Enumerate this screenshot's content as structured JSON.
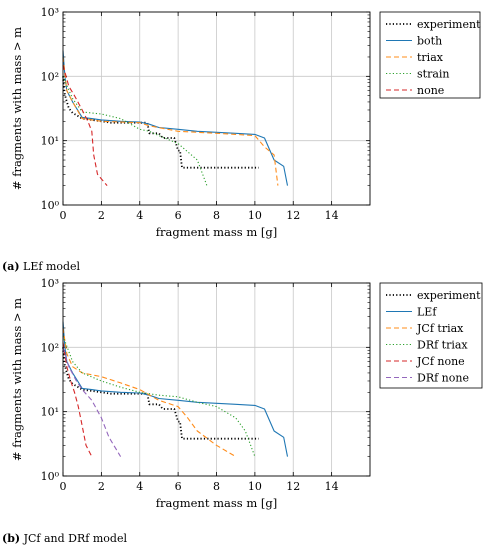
{
  "chart_data": [
    {
      "type": "line",
      "yscale": "log",
      "xlim": [
        0,
        16
      ],
      "ylim": [
        1,
        1000
      ],
      "grid": true,
      "legend_position": "top-right (outside)",
      "xlabel": "fragment mass m [g]",
      "ylabel": "# fragments with mass > m",
      "x_ticks": [
        0,
        2,
        4,
        6,
        8,
        10,
        12,
        14
      ],
      "x_tick_labels": [
        "0",
        "2",
        "4",
        "6",
        "8",
        "10",
        "12",
        "14"
      ],
      "y_ticks": [
        1,
        10,
        100,
        1000
      ],
      "y_tick_labels": [
        "10⁰",
        "10¹",
        "10²",
        "10³"
      ],
      "caption_letter": "(a)",
      "caption_text": "LEf model",
      "series": [
        {
          "name": "experiment",
          "color": "#000000",
          "style": "dotted",
          "points": [
            [
              0,
              100
            ],
            [
              0.05,
              60
            ],
            [
              0.15,
              45
            ],
            [
              0.3,
              32
            ],
            [
              0.5,
              27
            ],
            [
              0.8,
              24
            ],
            [
              1,
              22
            ],
            [
              1.5,
              21
            ],
            [
              2,
              20
            ],
            [
              2.5,
              19
            ],
            [
              3,
              19
            ],
            [
              4,
              19
            ],
            [
              4.4,
              19
            ],
            [
              4.5,
              13
            ],
            [
              5,
              13
            ],
            [
              5.2,
              11
            ],
            [
              5.8,
              11
            ],
            [
              6,
              7
            ],
            [
              6.1,
              7
            ],
            [
              6.2,
              3.8
            ],
            [
              9,
              3.8
            ],
            [
              10.2,
              3.8
            ]
          ]
        },
        {
          "name": "both",
          "color": "#1f77b4",
          "style": "solid",
          "points": [
            [
              0,
              250
            ],
            [
              0.1,
              100
            ],
            [
              0.2,
              60
            ],
            [
              0.5,
              40
            ],
            [
              1,
              23
            ],
            [
              1.5,
              22
            ],
            [
              2,
              21
            ],
            [
              3,
              20
            ],
            [
              4,
              19.5
            ],
            [
              4.5,
              18
            ],
            [
              5,
              16
            ],
            [
              6,
              15
            ],
            [
              7,
              14
            ],
            [
              8,
              13.5
            ],
            [
              9,
              13
            ],
            [
              10,
              12.5
            ],
            [
              10.5,
              11
            ],
            [
              11,
              5
            ],
            [
              11.5,
              4
            ],
            [
              11.7,
              2
            ]
          ]
        },
        {
          "name": "triax",
          "color": "#ff8c1a",
          "style": "dashed",
          "points": [
            [
              0,
              200
            ],
            [
              0.2,
              60
            ],
            [
              0.5,
              40
            ],
            [
              1,
              22
            ],
            [
              2,
              20
            ],
            [
              4,
              19
            ],
            [
              4.5,
              17
            ],
            [
              6,
              14
            ],
            [
              8,
              13
            ],
            [
              9,
              12.5
            ],
            [
              10,
              12
            ],
            [
              10.5,
              8
            ],
            [
              11,
              6
            ],
            [
              11.2,
              2
            ]
          ]
        },
        {
          "name": "strain",
          "color": "#2ca02c",
          "style": "dotted",
          "points": [
            [
              0,
              100
            ],
            [
              0.5,
              45
            ],
            [
              1,
              28
            ],
            [
              2,
              26
            ],
            [
              3,
              22
            ],
            [
              4,
              15
            ],
            [
              4.5,
              14
            ],
            [
              5,
              12
            ],
            [
              6,
              9
            ],
            [
              7,
              5
            ],
            [
              7.5,
              2
            ]
          ]
        },
        {
          "name": "none",
          "color": "#d62728",
          "style": "dashed",
          "points": [
            [
              0,
              150
            ],
            [
              0.3,
              70
            ],
            [
              0.6,
              50
            ],
            [
              1,
              30
            ],
            [
              1.3,
              20
            ],
            [
              1.5,
              14
            ],
            [
              1.6,
              6
            ],
            [
              1.8,
              3
            ],
            [
              2.3,
              2
            ]
          ]
        }
      ]
    },
    {
      "type": "line",
      "yscale": "log",
      "xlim": [
        0,
        16
      ],
      "ylim": [
        1,
        1000
      ],
      "grid": true,
      "legend_position": "top-right (outside)",
      "xlabel": "fragment mass m [g]",
      "ylabel": "# fragments with mass > m",
      "x_ticks": [
        0,
        2,
        4,
        6,
        8,
        10,
        12,
        14
      ],
      "x_tick_labels": [
        "0",
        "2",
        "4",
        "6",
        "8",
        "10",
        "12",
        "14"
      ],
      "y_ticks": [
        1,
        10,
        100,
        1000
      ],
      "y_tick_labels": [
        "10⁰",
        "10¹",
        "10²",
        "10³"
      ],
      "caption_letter": "(b)",
      "caption_text": "JCf and DRf model",
      "series": [
        {
          "name": "experiment",
          "color": "#000000",
          "style": "dotted",
          "points": [
            [
              0,
              100
            ],
            [
              0.05,
              60
            ],
            [
              0.15,
              45
            ],
            [
              0.3,
              32
            ],
            [
              0.5,
              27
            ],
            [
              0.8,
              24
            ],
            [
              1,
              22
            ],
            [
              1.5,
              21
            ],
            [
              2,
              20
            ],
            [
              2.5,
              19
            ],
            [
              3,
              19
            ],
            [
              4,
              19
            ],
            [
              4.4,
              19
            ],
            [
              4.5,
              13
            ],
            [
              5,
              13
            ],
            [
              5.2,
              11
            ],
            [
              5.8,
              11
            ],
            [
              6,
              7
            ],
            [
              6.1,
              7
            ],
            [
              6.2,
              3.8
            ],
            [
              9,
              3.8
            ],
            [
              10.2,
              3.8
            ]
          ]
        },
        {
          "name": "LEf",
          "color": "#1f77b4",
          "style": "solid",
          "points": [
            [
              0,
              250
            ],
            [
              0.1,
              100
            ],
            [
              0.2,
              60
            ],
            [
              0.5,
              40
            ],
            [
              1,
              23
            ],
            [
              1.5,
              22
            ],
            [
              2,
              21
            ],
            [
              3,
              20
            ],
            [
              4,
              19.5
            ],
            [
              4.5,
              18
            ],
            [
              5,
              16
            ],
            [
              6,
              15
            ],
            [
              7,
              14
            ],
            [
              8,
              13.5
            ],
            [
              9,
              13
            ],
            [
              10,
              12.5
            ],
            [
              10.5,
              11
            ],
            [
              11,
              5
            ],
            [
              11.5,
              4
            ],
            [
              11.7,
              2
            ]
          ]
        },
        {
          "name": "JCf triax",
          "color": "#ff8c1a",
          "style": "dashed",
          "points": [
            [
              0,
              200
            ],
            [
              0.2,
              80
            ],
            [
              0.5,
              50
            ],
            [
              1,
              40
            ],
            [
              2,
              35
            ],
            [
              3,
              28
            ],
            [
              4,
              22
            ],
            [
              5,
              15
            ],
            [
              6,
              12
            ],
            [
              6.5,
              8
            ],
            [
              7,
              5
            ],
            [
              8,
              3
            ],
            [
              9,
              2
            ]
          ]
        },
        {
          "name": "DRf triax",
          "color": "#2ca02c",
          "style": "dotted",
          "points": [
            [
              0,
              150
            ],
            [
              0.5,
              60
            ],
            [
              1,
              40
            ],
            [
              2,
              30
            ],
            [
              3,
              24
            ],
            [
              4,
              20
            ],
            [
              5,
              18
            ],
            [
              6,
              17
            ],
            [
              7,
              14
            ],
            [
              8,
              12
            ],
            [
              9,
              8
            ],
            [
              9.5,
              5
            ],
            [
              10,
              2
            ]
          ]
        },
        {
          "name": "JCf none",
          "color": "#d62728",
          "style": "dashed",
          "points": [
            [
              0,
              120
            ],
            [
              0.2,
              50
            ],
            [
              0.4,
              30
            ],
            [
              0.6,
              20
            ],
            [
              0.8,
              12
            ],
            [
              1,
              6
            ],
            [
              1.2,
              3
            ],
            [
              1.5,
              2
            ]
          ]
        },
        {
          "name": "DRf none",
          "color": "#9467bd",
          "style": "dashed",
          "points": [
            [
              0,
              100
            ],
            [
              0.3,
              50
            ],
            [
              0.7,
              30
            ],
            [
              1,
              22
            ],
            [
              1.5,
              15
            ],
            [
              2,
              8
            ],
            [
              2.4,
              4
            ],
            [
              3,
              2
            ]
          ]
        }
      ]
    }
  ]
}
